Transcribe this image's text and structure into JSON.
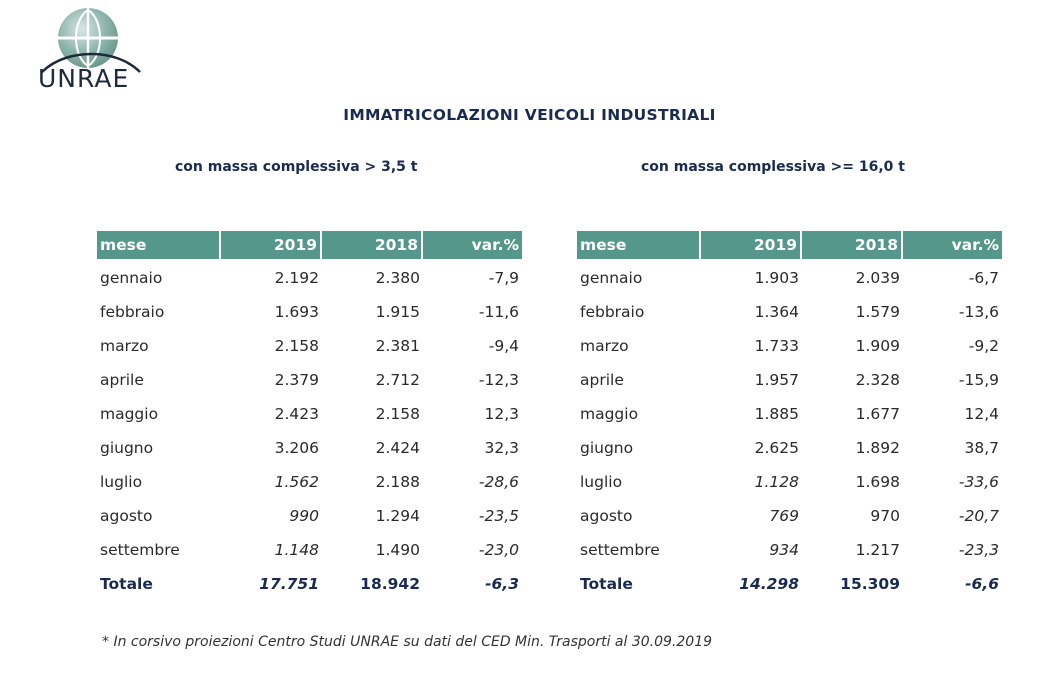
{
  "header": {
    "logo_text": "UNRAE",
    "title": "IMMATRICOLAZIONI VEICOLI INDUSTRIALI"
  },
  "left_table": {
    "subtitle": "con massa complessiva > 3,5 t",
    "headers": [
      "mese",
      "2019",
      "2018",
      "var.%"
    ],
    "rows": [
      {
        "mese": "gennaio",
        "y2019": "2.192",
        "y2018": "2.380",
        "var": "-7,9",
        "projected": false
      },
      {
        "mese": "febbraio",
        "y2019": "1.693",
        "y2018": "1.915",
        "var": "-11,6",
        "projected": false
      },
      {
        "mese": "marzo",
        "y2019": "2.158",
        "y2018": "2.381",
        "var": "-9,4",
        "projected": false
      },
      {
        "mese": "aprile",
        "y2019": "2.379",
        "y2018": "2.712",
        "var": "-12,3",
        "projected": false
      },
      {
        "mese": "maggio",
        "y2019": "2.423",
        "y2018": "2.158",
        "var": "12,3",
        "projected": false
      },
      {
        "mese": "giugno",
        "y2019": "3.206",
        "y2018": "2.424",
        "var": "32,3",
        "projected": false
      },
      {
        "mese": "luglio",
        "y2019": "1.562",
        "y2018": "2.188",
        "var": "-28,6",
        "projected": true
      },
      {
        "mese": "agosto",
        "y2019": "990",
        "y2018": "1.294",
        "var": "-23,5",
        "projected": true
      },
      {
        "mese": "settembre",
        "y2019": "1.148",
        "y2018": "1.490",
        "var": "-23,0",
        "projected": true
      }
    ],
    "total": {
      "label": "Totale",
      "y2019": "17.751",
      "y2018": "18.942",
      "var": "-6,3"
    }
  },
  "right_table": {
    "subtitle": "con massa complessiva >= 16,0 t",
    "headers": [
      "mese",
      "2019",
      "2018",
      "var.%"
    ],
    "rows": [
      {
        "mese": "gennaio",
        "y2019": "1.903",
        "y2018": "2.039",
        "var": "-6,7",
        "projected": false
      },
      {
        "mese": "febbraio",
        "y2019": "1.364",
        "y2018": "1.579",
        "var": "-13,6",
        "projected": false
      },
      {
        "mese": "marzo",
        "y2019": "1.733",
        "y2018": "1.909",
        "var": "-9,2",
        "projected": false
      },
      {
        "mese": "aprile",
        "y2019": "1.957",
        "y2018": "2.328",
        "var": "-15,9",
        "projected": false
      },
      {
        "mese": "maggio",
        "y2019": "1.885",
        "y2018": "1.677",
        "var": "12,4",
        "projected": false
      },
      {
        "mese": "giugno",
        "y2019": "2.625",
        "y2018": "1.892",
        "var": "38,7",
        "projected": false
      },
      {
        "mese": "luglio",
        "y2019": "1.128",
        "y2018": "1.698",
        "var": "-33,6",
        "projected": true
      },
      {
        "mese": "agosto",
        "y2019": "769",
        "y2018": "970",
        "var": "-20,7",
        "projected": true
      },
      {
        "mese": "settembre",
        "y2019": "934",
        "y2018": "1.217",
        "var": "-23,3",
        "projected": true
      }
    ],
    "total": {
      "label": "Totale",
      "y2019": "14.298",
      "y2018": "15.309",
      "var": "-6,6"
    }
  },
  "footnote": "* In corsivo proiezioni Centro Studi UNRAE su dati del CED Min. Trasporti al 30.09.2019",
  "colors": {
    "header_bg": "#56978c",
    "title_text": "#1a2b50",
    "logo_globe": "#7fa9a0"
  }
}
